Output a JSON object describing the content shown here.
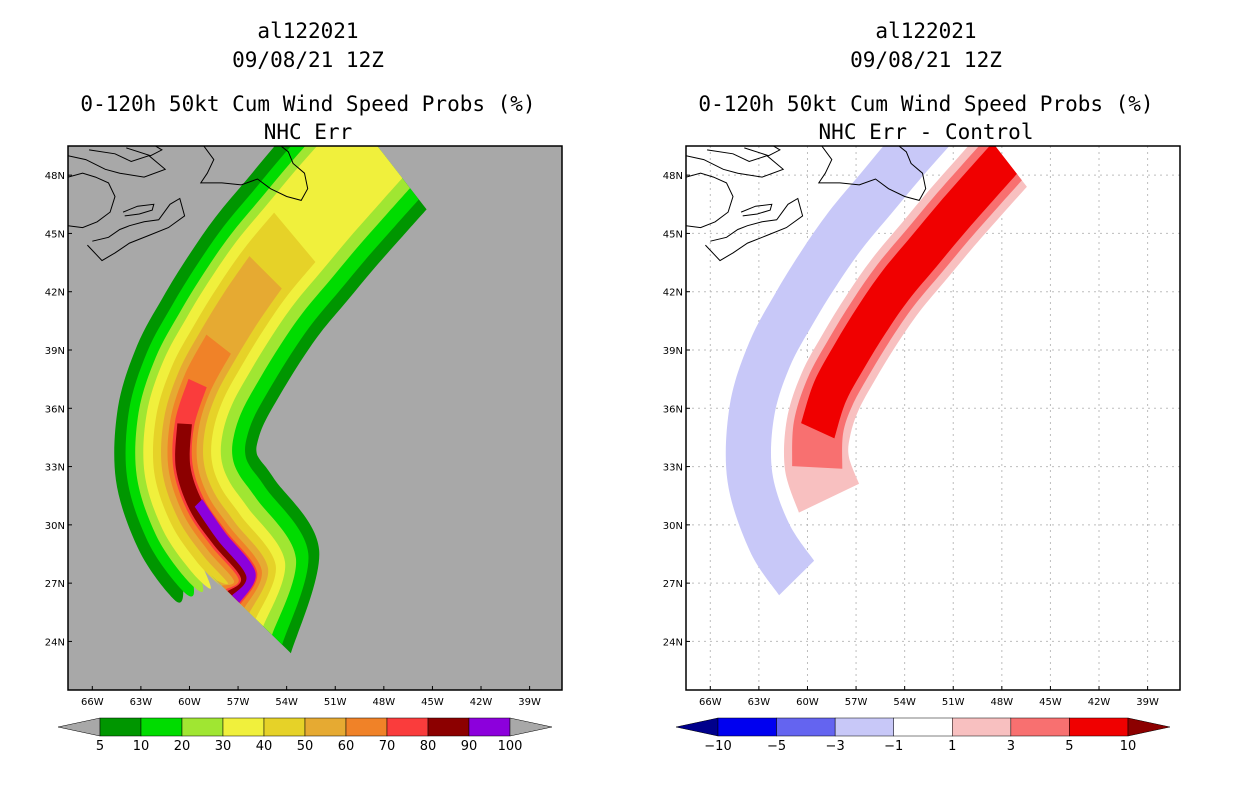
{
  "colors": {
    "ocean_left": "#a8a8a8",
    "coast": "#000000",
    "grid": "#bdbdbd"
  },
  "chart_data": [
    {
      "type": "heatmap",
      "storm_id": "al122021",
      "datetime": "09/08/21 12Z",
      "title": "0-120h 50kt Cum Wind Speed Probs (%)",
      "subtitle": "NHC Err",
      "xlim": [
        -67.5,
        -37
      ],
      "ylim": [
        21.5,
        49.5
      ],
      "x_ticks": [
        -66,
        -63,
        -60,
        -57,
        -54,
        -51,
        -48,
        -45,
        -42,
        -39
      ],
      "x_tick_labels": [
        "66W",
        "63W",
        "60W",
        "57W",
        "54W",
        "51W",
        "48W",
        "45W",
        "42W",
        "39W"
      ],
      "y_ticks": [
        24,
        27,
        30,
        33,
        36,
        39,
        42,
        45,
        48
      ],
      "y_tick_labels": [
        "24N",
        "27N",
        "30N",
        "33N",
        "36N",
        "39N",
        "42N",
        "45N",
        "48N"
      ],
      "grid": false,
      "colorbar": {
        "labels": [
          "5",
          "10",
          "20",
          "30",
          "40",
          "50",
          "60",
          "70",
          "80",
          "90",
          "100"
        ],
        "colors": [
          "#a8a8a8",
          "#009600",
          "#00dc00",
          "#a0e632",
          "#f0f03c",
          "#e6d228",
          "#e6aa32",
          "#f08228",
          "#fa3c3c",
          "#8c0000",
          "#8c00dc",
          "#a8a8a8"
        ]
      },
      "bands": [
        {
          "level": 5,
          "color": "#009600",
          "halfwidth": 4.4,
          "core_shift": 0.2
        },
        {
          "level": 10,
          "color": "#00dc00",
          "halfwidth": 3.7,
          "core_shift": 0.2
        },
        {
          "level": 20,
          "color": "#a0e632",
          "halfwidth": 3.0,
          "core_shift": 0.1
        },
        {
          "level": 30,
          "color": "#f0f03c",
          "halfwidth": 2.4,
          "core_shift": 0
        },
        {
          "level": 40,
          "color": "#e6d228",
          "halfwidth": 1.8,
          "core_shift": 0,
          "lat_max": 46
        },
        {
          "level": 50,
          "color": "#e6aa32",
          "halfwidth": 1.3,
          "core_shift": 0,
          "lat_max": 43.5
        },
        {
          "level": 60,
          "color": "#f08228",
          "halfwidth": 0.9,
          "core_shift": 0,
          "lat_max": 40.5
        },
        {
          "level": 70,
          "color": "#fa3c3c",
          "halfwidth": 0.6,
          "core_shift": 0,
          "lat_max": 38.5
        },
        {
          "level": 80,
          "color": "#8c0000",
          "halfwidth": 0.45,
          "core_shift": 0,
          "lat_max": 36
        },
        {
          "level": 90,
          "color": "#8c00dc",
          "halfwidth": 0.3,
          "core_shift": 0.2,
          "lat_max": 32.8
        }
      ],
      "track": [
        {
          "lon": -57.3,
          "lat": 26.3
        },
        {
          "lon": -56.4,
          "lat": 27.4
        },
        {
          "lon": -58.2,
          "lat": 29.3
        },
        {
          "lon": -59.6,
          "lat": 31.0
        },
        {
          "lon": -60.4,
          "lat": 33.0
        },
        {
          "lon": -60.3,
          "lat": 35.2
        },
        {
          "lon": -59.5,
          "lat": 37.3
        },
        {
          "lon": -58.2,
          "lat": 39.3
        },
        {
          "lon": -56.8,
          "lat": 41.2
        },
        {
          "lon": -55.3,
          "lat": 43.0
        },
        {
          "lon": -53.5,
          "lat": 44.8
        },
        {
          "lon": -51.8,
          "lat": 46.5
        },
        {
          "lon": -50.0,
          "lat": 48.2
        },
        {
          "lon": -48.5,
          "lat": 49.6
        }
      ]
    },
    {
      "type": "heatmap",
      "storm_id": "al122021",
      "datetime": "09/08/21 12Z",
      "title": "0-120h 50kt Cum Wind Speed Probs (%)",
      "subtitle": "NHC Err - Control",
      "xlim": [
        -67.5,
        -37
      ],
      "ylim": [
        21.5,
        49.5
      ],
      "x_ticks": [
        -66,
        -63,
        -60,
        -57,
        -54,
        -51,
        -48,
        -45,
        -42,
        -39
      ],
      "x_tick_labels": [
        "66W",
        "63W",
        "60W",
        "57W",
        "54W",
        "51W",
        "48W",
        "45W",
        "42W",
        "39W"
      ],
      "y_ticks": [
        24,
        27,
        30,
        33,
        36,
        39,
        42,
        45,
        48
      ],
      "y_tick_labels": [
        "24N",
        "27N",
        "30N",
        "33N",
        "36N",
        "39N",
        "42N",
        "45N",
        "48N"
      ],
      "grid": true,
      "colorbar": {
        "labels": [
          "−10",
          "−5",
          "−3",
          "−1",
          "1",
          "3",
          "5",
          "10"
        ],
        "colors": [
          "#00008c",
          "#0000f0",
          "#6464f0",
          "#c8c8f8",
          "#ffffff",
          "#f8c0c0",
          "#f87070",
          "#f00000",
          "#8c0000"
        ]
      },
      "bands": [
        {
          "level": -1,
          "color": "#c8c8f8",
          "halfwidth": 1.4,
          "core_shift": -3.2,
          "lat_min": 28.2
        },
        {
          "level": 1,
          "color": "#f8c0c0",
          "halfwidth": 2.0,
          "core_shift": 1.0,
          "lat_min": 29.8
        },
        {
          "level": 3,
          "color": "#f87070",
          "halfwidth": 1.55,
          "core_shift": 1.0,
          "lat_min": 32.2
        },
        {
          "level": 5,
          "color": "#f00000",
          "halfwidth": 1.1,
          "core_shift": 1.0,
          "lat_min": 35.0
        }
      ],
      "track": [
        {
          "lon": -57.3,
          "lat": 26.3
        },
        {
          "lon": -56.4,
          "lat": 27.4
        },
        {
          "lon": -58.2,
          "lat": 29.3
        },
        {
          "lon": -59.6,
          "lat": 31.0
        },
        {
          "lon": -60.4,
          "lat": 33.0
        },
        {
          "lon": -60.3,
          "lat": 35.2
        },
        {
          "lon": -59.5,
          "lat": 37.3
        },
        {
          "lon": -58.2,
          "lat": 39.3
        },
        {
          "lon": -56.8,
          "lat": 41.2
        },
        {
          "lon": -55.3,
          "lat": 43.0
        },
        {
          "lon": -53.5,
          "lat": 44.8
        },
        {
          "lon": -51.8,
          "lat": 46.5
        },
        {
          "lon": -50.0,
          "lat": 48.2
        },
        {
          "lon": -48.5,
          "lat": 49.6
        }
      ]
    }
  ]
}
